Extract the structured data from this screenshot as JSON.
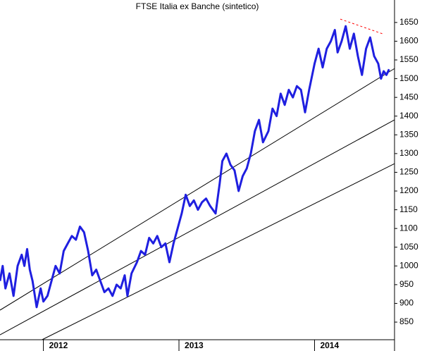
{
  "chart_data": {
    "type": "line",
    "title": "FTSE Italia ex Banche (sintetico)",
    "x": [
      2011.68,
      2011.7,
      2011.72,
      2011.75,
      2011.78,
      2011.81,
      2011.84,
      2011.86,
      2011.88,
      2011.9,
      2011.92,
      2011.95,
      2011.98,
      2012.0,
      2012.03,
      2012.06,
      2012.09,
      2012.12,
      2012.15,
      2012.18,
      2012.21,
      2012.24,
      2012.27,
      2012.3,
      2012.33,
      2012.36,
      2012.39,
      2012.42,
      2012.45,
      2012.48,
      2012.51,
      2012.54,
      2012.57,
      2012.6,
      2012.62,
      2012.65,
      2012.69,
      2012.72,
      2012.75,
      2012.78,
      2012.81,
      2012.84,
      2012.87,
      2012.9,
      2012.93,
      2012.96,
      2012.99,
      2013.02,
      2013.05,
      2013.08,
      2013.11,
      2013.14,
      2013.17,
      2013.2,
      2013.23,
      2013.27,
      2013.3,
      2013.32,
      2013.35,
      2013.38,
      2013.41,
      2013.44,
      2013.47,
      2013.5,
      2013.53,
      2013.56,
      2013.59,
      2013.62,
      2013.66,
      2013.69,
      2013.72,
      2013.75,
      2013.78,
      2013.81,
      2013.84,
      2013.87,
      2013.9,
      2013.93,
      2013.96,
      2014.0,
      2014.03,
      2014.06,
      2014.09,
      2014.12,
      2014.15,
      2014.17,
      2014.2,
      2014.23,
      2014.26,
      2014.29,
      2014.32,
      2014.35,
      2014.38,
      2014.41,
      2014.44,
      2014.47,
      2014.49,
      2014.51,
      2014.53,
      2014.55
    ],
    "values": [
      960,
      1000,
      940,
      980,
      920,
      1000,
      1030,
      1000,
      1045,
      990,
      960,
      890,
      940,
      905,
      920,
      960,
      1000,
      980,
      1040,
      1060,
      1080,
      1070,
      1105,
      1090,
      1040,
      975,
      990,
      960,
      930,
      940,
      920,
      950,
      940,
      975,
      920,
      980,
      1010,
      1040,
      1030,
      1075,
      1060,
      1080,
      1050,
      1060,
      1010,
      1060,
      1100,
      1140,
      1190,
      1160,
      1175,
      1150,
      1170,
      1180,
      1160,
      1140,
      1220,
      1280,
      1300,
      1270,
      1255,
      1200,
      1240,
      1260,
      1300,
      1360,
      1390,
      1330,
      1360,
      1420,
      1400,
      1460,
      1430,
      1470,
      1450,
      1480,
      1470,
      1410,
      1470,
      1540,
      1580,
      1530,
      1580,
      1600,
      1630,
      1570,
      1600,
      1640,
      1580,
      1620,
      1560,
      1510,
      1580,
      1610,
      1560,
      1540,
      1500,
      1520,
      1510,
      1525
    ],
    "color": "#1f1fe0",
    "xlim": [
      2011.68,
      2014.59
    ],
    "xticks": [
      2012,
      2013,
      2014
    ],
    "ylim": [
      803,
      1710
    ],
    "yticks": [
      850,
      900,
      950,
      1000,
      1050,
      1100,
      1150,
      1200,
      1250,
      1300,
      1350,
      1400,
      1450,
      1500,
      1550,
      1600,
      1650
    ],
    "trend_lines": [
      {
        "x": [
          2011.68,
          2014.59
        ],
        "y": [
          882,
          1527
        ],
        "color": "#000000"
      },
      {
        "x": [
          2011.68,
          2014.59
        ],
        "y": [
          816,
          1390
        ],
        "color": "#000000"
      },
      {
        "x": [
          2011.99,
          2014.59
        ],
        "y": [
          803,
          1273
        ],
        "color": "#000000"
      },
      {
        "x": [
          2014.19,
          2014.5
        ],
        "y": [
          1659,
          1620
        ],
        "color": "#ff0000",
        "dashed": true
      }
    ]
  }
}
